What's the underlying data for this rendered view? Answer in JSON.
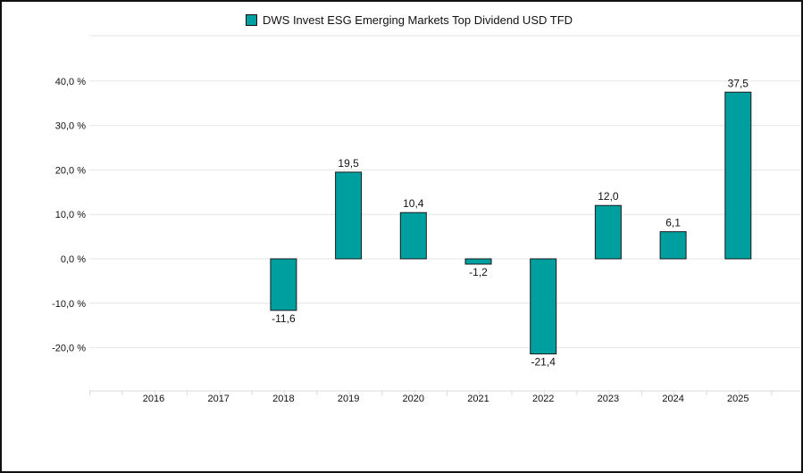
{
  "chart_data": {
    "type": "bar",
    "title": "",
    "xlabel": "",
    "ylabel": "",
    "categories": [
      "2016",
      "2017",
      "2018",
      "2019",
      "2020",
      "2021",
      "2022",
      "2023",
      "2024",
      "2025"
    ],
    "series": [
      {
        "name": "DWS Invest ESG Emerging Markets Top Dividend USD TFD",
        "values": [
          null,
          null,
          -11.6,
          19.5,
          10.4,
          -1.2,
          -21.4,
          12.0,
          6.1,
          37.5
        ],
        "value_labels": [
          "",
          "",
          "-11,6",
          "19,5",
          "10,4",
          "-1,2",
          "-21,4",
          "12,0",
          "6,1",
          "37,5"
        ]
      }
    ],
    "yticks": [
      40,
      30,
      20,
      10,
      0,
      -10,
      -20
    ],
    "ytick_labels": [
      "40,0 %",
      "30,0 %",
      "20,0 %",
      "10,0 %",
      "0,0 %",
      "-10,0 %",
      "-20,0 %"
    ],
    "ylim": [
      -30,
      50
    ],
    "grid": true,
    "legend_position": "top-center",
    "colors": {
      "bar": "#009f9f",
      "bar_stroke": "#1a1a1a",
      "grid": "#e6e6e6",
      "axis": "#d9d9d9",
      "text": "#111111"
    }
  }
}
